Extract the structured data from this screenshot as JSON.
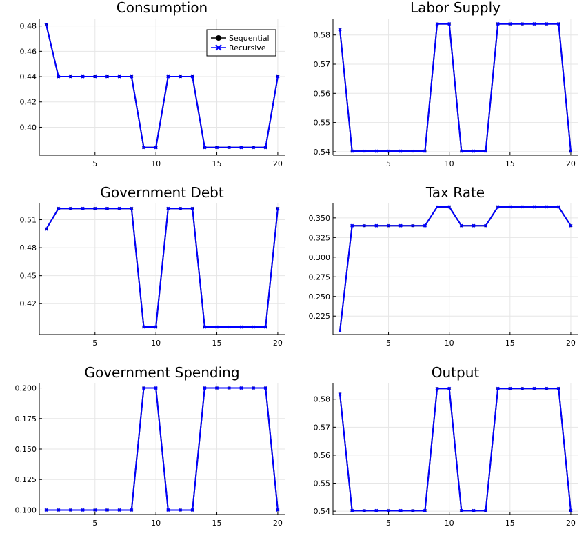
{
  "colors": {
    "sequential": "#000000",
    "recursive": "#0000ff"
  },
  "legend": {
    "placement": "top-right",
    "entries": [
      {
        "name": "Sequential",
        "marker": "circle",
        "color": "#000000"
      },
      {
        "name": "Recursive",
        "marker": "x",
        "color": "#0000ff"
      }
    ]
  },
  "chart_data": [
    {
      "type": "line",
      "title": "Consumption",
      "xlabel": "",
      "ylabel": "",
      "x": [
        1,
        2,
        3,
        4,
        5,
        6,
        7,
        8,
        9,
        10,
        11,
        12,
        13,
        14,
        15,
        16,
        17,
        18,
        19,
        20
      ],
      "xlim": [
        0.43,
        20.57
      ],
      "ylim": [
        0.3779,
        0.4858
      ],
      "xticks": [
        5,
        10,
        15,
        20
      ],
      "yticks": [
        0.4,
        0.42,
        0.44,
        0.46,
        0.48
      ],
      "ytick_labels": [
        "0.40",
        "0.42",
        "0.44",
        "0.46",
        "0.48"
      ],
      "grid": true,
      "legend": true,
      "series": [
        {
          "name": "Sequential",
          "values": [
            0.481,
            0.44,
            0.44,
            0.44,
            0.44,
            0.44,
            0.44,
            0.44,
            0.384,
            0.384,
            0.44,
            0.44,
            0.44,
            0.384,
            0.384,
            0.384,
            0.384,
            0.384,
            0.384,
            0.44
          ]
        },
        {
          "name": "Recursive",
          "values": [
            0.481,
            0.44,
            0.44,
            0.44,
            0.44,
            0.44,
            0.44,
            0.44,
            0.384,
            0.384,
            0.44,
            0.44,
            0.44,
            0.384,
            0.384,
            0.384,
            0.384,
            0.384,
            0.384,
            0.44
          ]
        }
      ]
    },
    {
      "type": "line",
      "title": "Labor Supply",
      "xlabel": "",
      "ylabel": "",
      "x": [
        1,
        2,
        3,
        4,
        5,
        6,
        7,
        8,
        9,
        10,
        11,
        12,
        13,
        14,
        15,
        16,
        17,
        18,
        19,
        20
      ],
      "xlim": [
        0.43,
        20.57
      ],
      "ylim": [
        0.5388,
        0.5856
      ],
      "xticks": [
        5,
        10,
        15,
        20
      ],
      "yticks": [
        0.54,
        0.55,
        0.56,
        0.57,
        0.58
      ],
      "ytick_labels": [
        "0.54",
        "0.55",
        "0.56",
        "0.57",
        "0.58"
      ],
      "grid": true,
      "legend": false,
      "series": [
        {
          "name": "Sequential",
          "values": [
            0.5818,
            0.5402,
            0.5402,
            0.5402,
            0.5402,
            0.5402,
            0.5402,
            0.5402,
            0.5838,
            0.5838,
            0.5402,
            0.5402,
            0.5402,
            0.5838,
            0.5838,
            0.5838,
            0.5838,
            0.5838,
            0.5838,
            0.5402
          ]
        },
        {
          "name": "Recursive",
          "values": [
            0.5818,
            0.5402,
            0.5402,
            0.5402,
            0.5402,
            0.5402,
            0.5402,
            0.5402,
            0.5838,
            0.5838,
            0.5402,
            0.5402,
            0.5402,
            0.5838,
            0.5838,
            0.5838,
            0.5838,
            0.5838,
            0.5838,
            0.5402
          ]
        }
      ]
    },
    {
      "type": "line",
      "title": "Government Debt",
      "xlabel": "",
      "ylabel": "",
      "x": [
        1,
        2,
        3,
        4,
        5,
        6,
        7,
        8,
        9,
        10,
        11,
        12,
        13,
        14,
        15,
        16,
        17,
        18,
        19,
        20
      ],
      "xlim": [
        0.43,
        20.57
      ],
      "ylim": [
        0.3869,
        0.5274
      ],
      "xticks": [
        5,
        10,
        15,
        20
      ],
      "yticks": [
        0.42,
        0.45,
        0.48,
        0.51
      ],
      "ytick_labels": [
        "0.42",
        "0.45",
        "0.48",
        "0.51"
      ],
      "grid": true,
      "legend": false,
      "series": [
        {
          "name": "Sequential",
          "values": [
            0.5,
            0.522,
            0.522,
            0.522,
            0.522,
            0.522,
            0.522,
            0.522,
            0.395,
            0.395,
            0.522,
            0.522,
            0.522,
            0.395,
            0.395,
            0.395,
            0.395,
            0.395,
            0.395,
            0.522
          ]
        },
        {
          "name": "Recursive",
          "values": [
            0.5,
            0.522,
            0.522,
            0.522,
            0.522,
            0.522,
            0.522,
            0.522,
            0.395,
            0.395,
            0.522,
            0.522,
            0.522,
            0.395,
            0.395,
            0.395,
            0.395,
            0.395,
            0.395,
            0.522
          ]
        }
      ]
    },
    {
      "type": "line",
      "title": "Tax Rate",
      "xlabel": "",
      "ylabel": "",
      "x": [
        1,
        2,
        3,
        4,
        5,
        6,
        7,
        8,
        9,
        10,
        11,
        12,
        13,
        14,
        15,
        16,
        17,
        18,
        19,
        20
      ],
      "xlim": [
        0.43,
        20.57
      ],
      "ylim": [
        0.2015,
        0.3683
      ],
      "xticks": [
        5,
        10,
        15,
        20
      ],
      "yticks": [
        0.225,
        0.25,
        0.275,
        0.3,
        0.325,
        0.35
      ],
      "ytick_labels": [
        "0.225",
        "0.250",
        "0.275",
        "0.300",
        "0.325",
        "0.350"
      ],
      "grid": true,
      "legend": false,
      "series": [
        {
          "name": "Sequential",
          "values": [
            0.206,
            0.34,
            0.34,
            0.34,
            0.34,
            0.34,
            0.34,
            0.34,
            0.364,
            0.364,
            0.34,
            0.34,
            0.34,
            0.364,
            0.364,
            0.364,
            0.364,
            0.364,
            0.364,
            0.34
          ]
        },
        {
          "name": "Recursive",
          "values": [
            0.206,
            0.34,
            0.34,
            0.34,
            0.34,
            0.34,
            0.34,
            0.34,
            0.364,
            0.364,
            0.34,
            0.34,
            0.34,
            0.364,
            0.364,
            0.364,
            0.364,
            0.364,
            0.364,
            0.34
          ]
        }
      ]
    },
    {
      "type": "line",
      "title": "Government Spending",
      "xlabel": "",
      "ylabel": "",
      "x": [
        1,
        2,
        3,
        4,
        5,
        6,
        7,
        8,
        9,
        10,
        11,
        12,
        13,
        14,
        15,
        16,
        17,
        18,
        19,
        20
      ],
      "xlim": [
        0.43,
        20.57
      ],
      "ylim": [
        0.0963,
        0.2037
      ],
      "xticks": [
        5,
        10,
        15,
        20
      ],
      "yticks": [
        0.1,
        0.125,
        0.15,
        0.175,
        0.2
      ],
      "ytick_labels": [
        "0.100",
        "0.125",
        "0.150",
        "0.175",
        "0.200"
      ],
      "grid": true,
      "legend": false,
      "series": [
        {
          "name": "Sequential",
          "values": [
            0.1,
            0.1,
            0.1,
            0.1,
            0.1,
            0.1,
            0.1,
            0.1,
            0.2,
            0.2,
            0.1,
            0.1,
            0.1,
            0.2,
            0.2,
            0.2,
            0.2,
            0.2,
            0.2,
            0.1
          ]
        },
        {
          "name": "Recursive",
          "values": [
            0.1,
            0.1,
            0.1,
            0.1,
            0.1,
            0.1,
            0.1,
            0.1,
            0.2,
            0.2,
            0.1,
            0.1,
            0.1,
            0.2,
            0.2,
            0.2,
            0.2,
            0.2,
            0.2,
            0.1
          ]
        }
      ]
    },
    {
      "type": "line",
      "title": "Output",
      "xlabel": "",
      "ylabel": "",
      "x": [
        1,
        2,
        3,
        4,
        5,
        6,
        7,
        8,
        9,
        10,
        11,
        12,
        13,
        14,
        15,
        16,
        17,
        18,
        19,
        20
      ],
      "xlim": [
        0.43,
        20.57
      ],
      "ylim": [
        0.5388,
        0.5856
      ],
      "xticks": [
        5,
        10,
        15,
        20
      ],
      "yticks": [
        0.54,
        0.55,
        0.56,
        0.57,
        0.58
      ],
      "ytick_labels": [
        "0.54",
        "0.55",
        "0.56",
        "0.57",
        "0.58"
      ],
      "grid": true,
      "legend": false,
      "series": [
        {
          "name": "Sequential",
          "values": [
            0.5818,
            0.5402,
            0.5402,
            0.5402,
            0.5402,
            0.5402,
            0.5402,
            0.5402,
            0.5838,
            0.5838,
            0.5402,
            0.5402,
            0.5402,
            0.5838,
            0.5838,
            0.5838,
            0.5838,
            0.5838,
            0.5838,
            0.5402
          ]
        },
        {
          "name": "Recursive",
          "values": [
            0.5818,
            0.5402,
            0.5402,
            0.5402,
            0.5402,
            0.5402,
            0.5402,
            0.5402,
            0.5838,
            0.5838,
            0.5402,
            0.5402,
            0.5402,
            0.5838,
            0.5838,
            0.5838,
            0.5838,
            0.5838,
            0.5838,
            0.5402
          ]
        }
      ]
    }
  ]
}
